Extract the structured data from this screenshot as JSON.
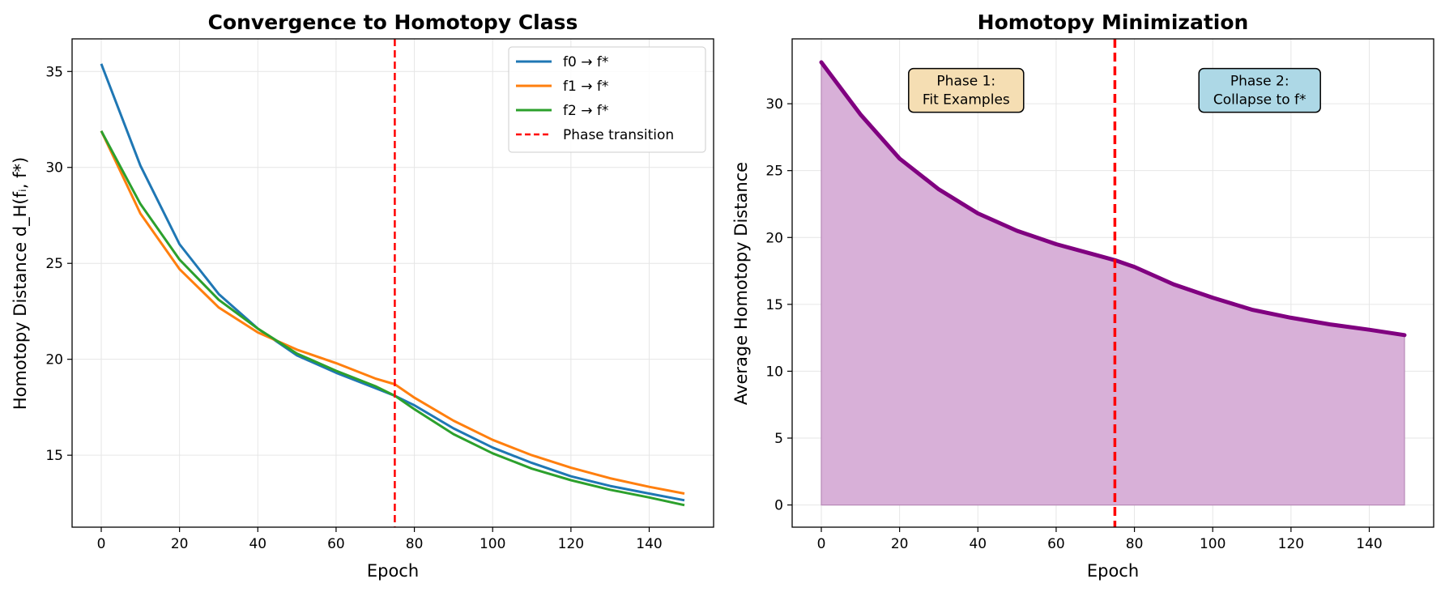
{
  "chart_data": [
    {
      "type": "line",
      "title": "Convergence to Homotopy Class",
      "xlabel": "Epoch",
      "ylabel": "Homotopy Distance d_H(fᵢ, f*)",
      "xlim": [
        -7.45,
        156.45
      ],
      "ylim": [
        11.25,
        36.7
      ],
      "xticks": [
        0,
        20,
        40,
        60,
        80,
        100,
        120,
        140
      ],
      "yticks": [
        15,
        20,
        25,
        30,
        35
      ],
      "grid": true,
      "legend_position": "top-right",
      "x": [
        0,
        10,
        20,
        30,
        40,
        50,
        60,
        70,
        75,
        80,
        90,
        100,
        110,
        120,
        130,
        140,
        149
      ],
      "series": [
        {
          "name": "f0 → f*",
          "color": "#1f77b4",
          "values": [
            35.4,
            30.1,
            26.0,
            23.4,
            21.6,
            20.2,
            19.3,
            18.5,
            18.1,
            17.6,
            16.4,
            15.4,
            14.6,
            13.9,
            13.4,
            13.0,
            12.65
          ]
        },
        {
          "name": "f1 → f*",
          "color": "#ff7f0e",
          "values": [
            31.9,
            27.6,
            24.7,
            22.7,
            21.4,
            20.5,
            19.8,
            19.0,
            18.7,
            18.0,
            16.8,
            15.8,
            15.0,
            14.35,
            13.8,
            13.35,
            13.0
          ]
        },
        {
          "name": "f2 → f*",
          "color": "#2ca02c",
          "values": [
            31.9,
            28.1,
            25.2,
            23.1,
            21.6,
            20.3,
            19.4,
            18.6,
            18.1,
            17.4,
            16.1,
            15.1,
            14.3,
            13.7,
            13.2,
            12.8,
            12.4
          ]
        }
      ],
      "vline": {
        "x": 75,
        "label": "Phase transition",
        "color": "#ff0000"
      }
    },
    {
      "type": "area",
      "title": "Homotopy Minimization",
      "xlabel": "Epoch",
      "ylabel": "Average Homotopy Distance",
      "xlim": [
        -7.45,
        156.45
      ],
      "ylim": [
        -1.66,
        34.85
      ],
      "xticks": [
        0,
        20,
        40,
        60,
        80,
        100,
        120,
        140
      ],
      "yticks": [
        0,
        5,
        10,
        15,
        20,
        25,
        30
      ],
      "grid": true,
      "x": [
        0,
        10,
        20,
        30,
        40,
        50,
        60,
        70,
        75,
        80,
        90,
        100,
        110,
        120,
        130,
        140,
        149
      ],
      "series": [
        {
          "name": "Average",
          "color": "#800080",
          "fill": "#d8b0d8",
          "values": [
            33.1,
            29.2,
            25.9,
            23.6,
            21.8,
            20.5,
            19.5,
            18.7,
            18.3,
            17.8,
            16.5,
            15.5,
            14.6,
            14.0,
            13.5,
            13.1,
            12.7
          ]
        }
      ],
      "vline": {
        "x": 75,
        "color": "#ff0000"
      },
      "annotations": [
        {
          "lines": [
            "Phase 1:",
            "Fit Examples"
          ],
          "x": 37,
          "y": 31,
          "bg": "#f5deb3"
        },
        {
          "lines": [
            "Phase 2:",
            "Collapse to f*"
          ],
          "x": 112,
          "y": 31,
          "bg": "#add8e6"
        }
      ]
    }
  ]
}
